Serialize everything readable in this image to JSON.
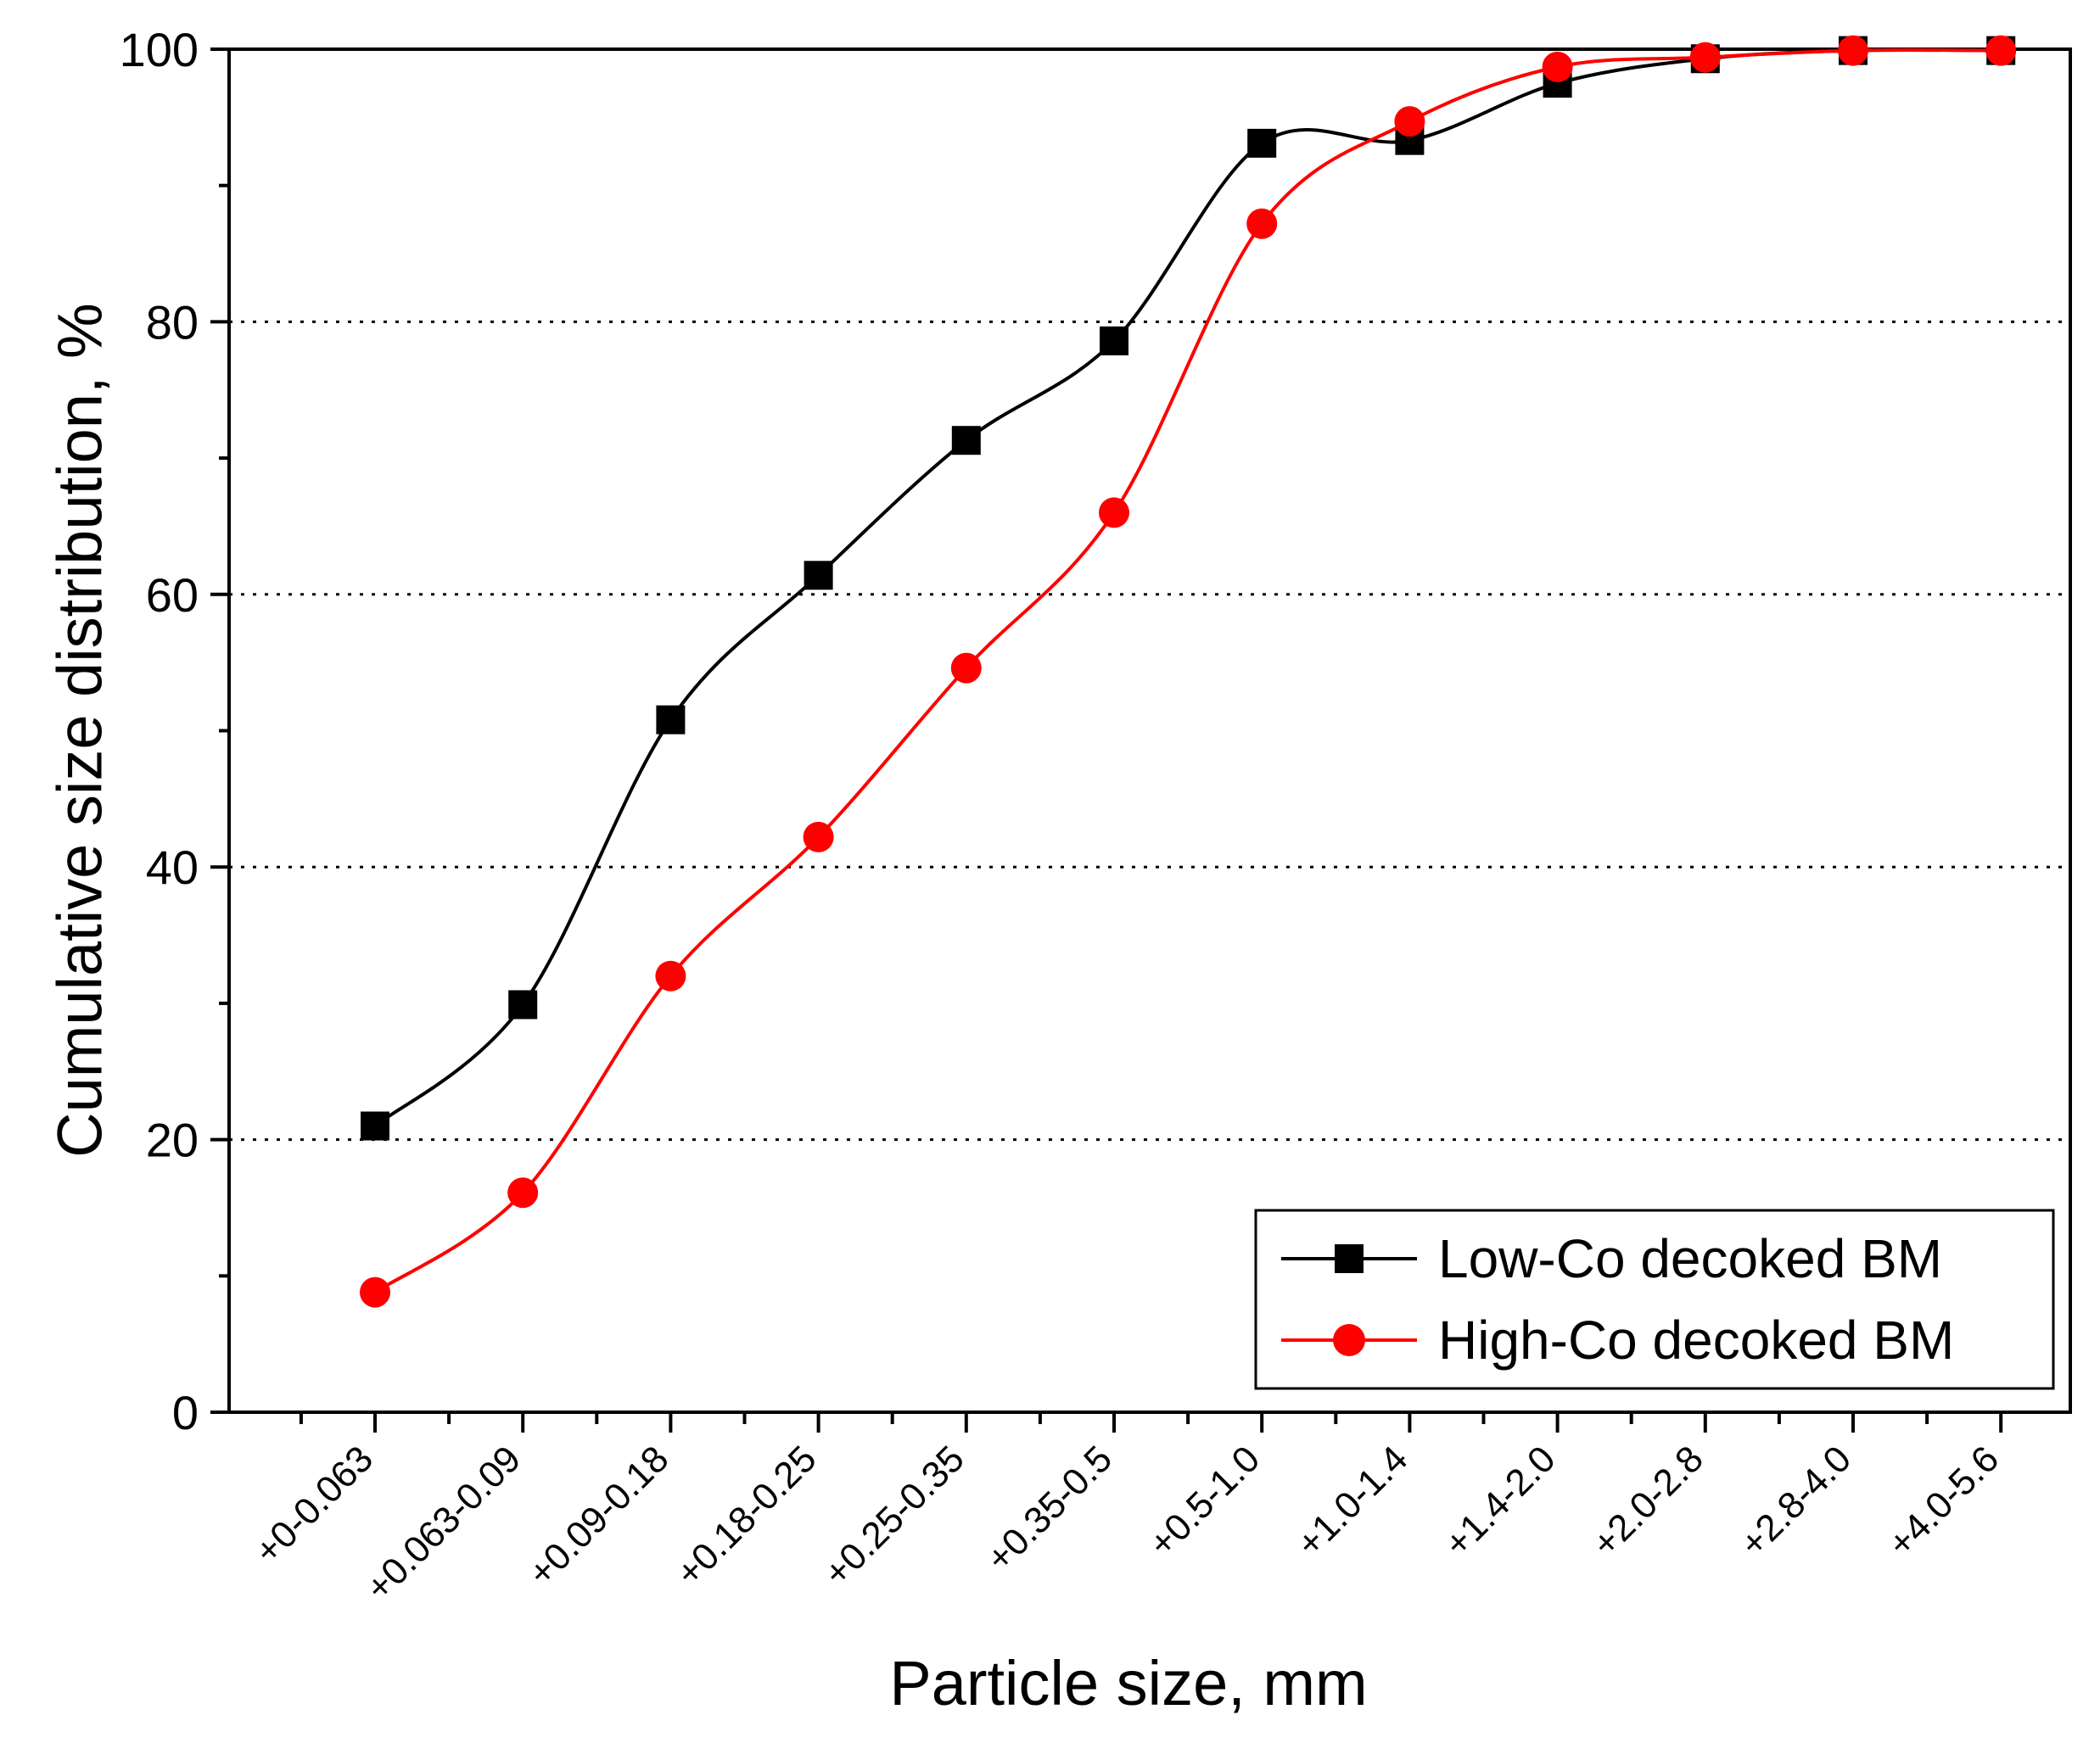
{
  "chart_data": {
    "type": "line",
    "title": "",
    "xlabel": "Particle size, mm",
    "ylabel": "Cumulative size distribution, %",
    "ylim": [
      0,
      100
    ],
    "yticks": [
      0,
      20,
      40,
      60,
      80,
      100
    ],
    "grid": {
      "horizontal_dotted": [
        20,
        40,
        60,
        80
      ]
    },
    "categories": [
      "+0-0.063",
      "+0.063-0.09",
      "+0.09-0.18",
      "+0.18-0.25",
      "+0.25-0.35",
      "+0.35-0.5",
      "+0.5-1.0",
      "+1.0-1.4",
      "+1.4-2.0",
      "+2.0-2.8",
      "+2.8-4.0",
      "+4.0-5.6"
    ],
    "series": [
      {
        "name": "Low-Co decoked BM",
        "color": "#000000",
        "marker": "square",
        "values": [
          21.0,
          29.9,
          50.8,
          61.4,
          71.3,
          78.6,
          93.1,
          93.3,
          97.5,
          99.3,
          99.9,
          99.9
        ]
      },
      {
        "name": "High-Co decoked BM",
        "color": "#ff0000",
        "marker": "circle",
        "values": [
          8.8,
          16.1,
          32.0,
          42.2,
          54.6,
          66.0,
          87.2,
          94.7,
          98.7,
          99.4,
          99.9,
          99.9
        ]
      }
    ],
    "legend_position": "bottom-right"
  }
}
